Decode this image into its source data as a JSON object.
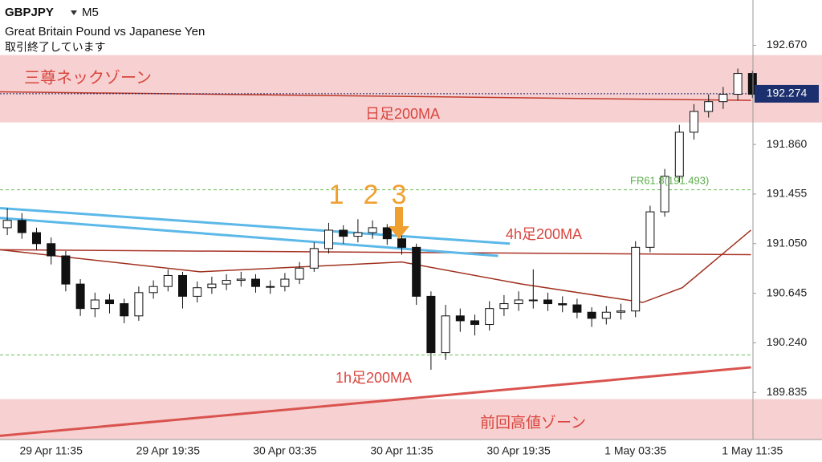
{
  "header": {
    "symbol": "GBPJPY",
    "timeframe": "M5",
    "name": "Great Britain Pound vs Japanese Yen",
    "status": "取引終了しています"
  },
  "chart_data": {
    "type": "candlestick",
    "categories": [
      null,
      null,
      null,
      "29 Apr 11:35",
      null,
      null,
      null,
      null,
      null,
      null,
      null,
      "29 Apr 19:35",
      null,
      null,
      null,
      null,
      null,
      null,
      null,
      "30 Apr 03:35",
      null,
      null,
      null,
      null,
      null,
      null,
      null,
      "30 Apr 11:35",
      null,
      null,
      null,
      null,
      null,
      null,
      null,
      "30 Apr 19:35",
      null,
      null,
      null,
      null,
      null,
      null,
      null,
      "1 May 03:35",
      null,
      null,
      null,
      null,
      null,
      null,
      null,
      "1 May 11:35"
    ],
    "open": [
      191.18,
      191.24,
      191.14,
      191.05,
      190.95,
      190.72,
      190.52,
      190.59,
      190.56,
      190.46,
      190.65,
      190.7,
      190.79,
      190.62,
      190.69,
      190.72,
      190.75,
      190.76,
      190.7,
      190.7,
      190.76,
      190.85,
      191.01,
      191.16,
      191.11,
      191.14,
      191.18,
      191.09,
      191.02,
      190.62,
      190.16,
      190.46,
      190.42,
      190.39,
      190.52,
      190.56,
      190.59,
      190.59,
      190.56,
      190.55,
      190.49,
      190.44,
      190.49,
      190.5,
      191.02,
      191.31,
      191.6,
      191.96,
      192.13,
      192.21,
      192.27,
      192.44
    ],
    "high": [
      191.34,
      191.3,
      191.18,
      191.1,
      190.99,
      190.76,
      190.65,
      190.64,
      190.6,
      190.7,
      190.75,
      190.84,
      190.82,
      190.74,
      190.78,
      190.8,
      190.82,
      190.8,
      190.75,
      190.81,
      190.9,
      191.06,
      191.22,
      191.2,
      191.25,
      191.24,
      191.21,
      191.12,
      191.05,
      190.66,
      190.55,
      190.52,
      190.47,
      190.58,
      190.63,
      190.66,
      190.84,
      190.65,
      190.62,
      190.6,
      190.53,
      190.54,
      190.56,
      191.07,
      191.36,
      191.66,
      192.02,
      192.19,
      192.27,
      192.33,
      192.48,
      192.46
    ],
    "low": [
      191.12,
      191.09,
      191.0,
      190.88,
      190.66,
      190.46,
      190.45,
      190.48,
      190.4,
      190.42,
      190.6,
      190.66,
      190.52,
      190.57,
      190.64,
      190.67,
      190.7,
      190.65,
      190.64,
      190.66,
      190.72,
      190.82,
      190.97,
      191.05,
      191.06,
      191.09,
      191.04,
      190.96,
      190.55,
      190.02,
      190.1,
      190.33,
      190.3,
      190.34,
      190.46,
      190.5,
      190.52,
      190.5,
      190.49,
      190.44,
      190.37,
      190.39,
      190.43,
      190.45,
      190.98,
      191.27,
      191.55,
      191.9,
      192.08,
      192.15,
      192.22,
      192.24
    ],
    "close": [
      191.24,
      191.14,
      191.05,
      190.95,
      190.72,
      190.52,
      190.59,
      190.56,
      190.46,
      190.65,
      190.7,
      190.79,
      190.62,
      190.69,
      190.72,
      190.75,
      190.76,
      190.7,
      190.7,
      190.76,
      190.85,
      191.01,
      191.16,
      191.11,
      191.14,
      191.18,
      191.09,
      191.02,
      190.62,
      190.16,
      190.46,
      190.42,
      190.39,
      190.52,
      190.56,
      190.59,
      190.59,
      190.56,
      190.55,
      190.49,
      190.44,
      190.49,
      190.5,
      191.02,
      191.31,
      191.6,
      191.96,
      192.13,
      192.21,
      192.27,
      192.44,
      192.27
    ],
    "ylim": [
      189.45,
      193.04
    ],
    "yticks": [
      {
        "value": 192.67,
        "label": "192.670"
      },
      {
        "value": 191.86,
        "label": "191.860"
      },
      {
        "value": 191.455,
        "label": "191.455"
      },
      {
        "value": 191.05,
        "label": "191.050"
      },
      {
        "value": 190.645,
        "label": "190.645"
      },
      {
        "value": 190.24,
        "label": "190.240"
      },
      {
        "value": 189.835,
        "label": "189.835"
      }
    ],
    "current_price": 192.274,
    "zones": [
      {
        "label": "三尊ネックゾーン",
        "range": [
          192.04,
          192.59
        ]
      },
      {
        "label": "前回高値ゾーン",
        "range": [
          189.45,
          189.78
        ]
      }
    ],
    "levels": [
      191.49,
      190.14
    ],
    "lines": [
      {
        "color": "#c0392b",
        "x": [
          -0.5,
          50.9
        ],
        "values": [
          192.29,
          192.22
        ]
      },
      {
        "color": "#a93226",
        "x": [
          -0.5,
          50.9
        ],
        "values": [
          191.0,
          190.96
        ]
      },
      {
        "color": "#a0301e",
        "x": [
          -0.5,
          13.2,
          27,
          35.2,
          43.5,
          46.2,
          50.9
        ],
        "values": [
          191.0,
          190.82,
          190.9,
          190.72,
          190.57,
          190.69,
          191.16
        ]
      },
      {
        "color": "#d9534f",
        "x": [
          -0.5,
          50.9
        ],
        "values": [
          189.48,
          190.04
        ]
      },
      {
        "color": "#5bb8e8",
        "x": [
          -0.5,
          34.4
        ],
        "values": [
          191.34,
          191.05
        ]
      },
      {
        "color": "#5bb8e8",
        "x": [
          -0.5,
          33.6
        ],
        "values": [
          191.26,
          190.95
        ]
      }
    ],
    "annotations": [
      "三尊ネックゾーン",
      "日足200MA",
      "4h足200MA",
      "1h足200MA",
      "前回高値ゾーン",
      "FR61.8(191.493)",
      "1",
      "2",
      "3"
    ]
  }
}
